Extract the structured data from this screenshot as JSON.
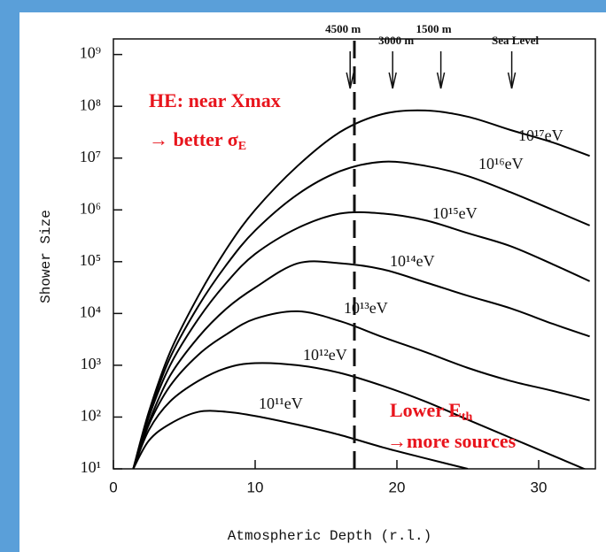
{
  "chart_data": {
    "type": "line",
    "y_label": "Shower Size",
    "x_label": "Atmospheric Depth (r.l.)",
    "y_log": true,
    "x": [
      1.4,
      2.5,
      4,
      6,
      8,
      10,
      13,
      16,
      19,
      22,
      25,
      28,
      31,
      33.6
    ],
    "xlim": [
      0,
      34
    ],
    "ylim": [
      10,
      2000000000
    ],
    "xticks": [
      0,
      10,
      20,
      30
    ],
    "yticks": [
      {
        "value": 10,
        "label": "10¹"
      },
      {
        "value": 100,
        "label": "10²"
      },
      {
        "value": 1000,
        "label": "10³"
      },
      {
        "value": 10000,
        "label": "10⁴"
      },
      {
        "value": 100000,
        "label": "10⁵"
      },
      {
        "value": 1000000,
        "label": "10⁶"
      },
      {
        "value": 10000000,
        "label": "10⁷"
      },
      {
        "value": 100000000,
        "label": "10⁸"
      },
      {
        "value": 1000000000,
        "label": "10⁹"
      }
    ],
    "series": [
      {
        "name": "10¹¹eV",
        "color": "#000000",
        "values": [
          10,
          35,
          74,
          126,
          126,
          105,
          71,
          45,
          26,
          16,
          10,
          null,
          null,
          null
        ]
      },
      {
        "name": "10¹²eV",
        "color": "#000000",
        "values": [
          10,
          56,
          200,
          500,
          890,
          1100,
          1000,
          710,
          400,
          200,
          89,
          40,
          18,
          9
        ]
      },
      {
        "name": "10¹³eV",
        "color": "#000000",
        "values": [
          10,
          71,
          400,
          1600,
          4000,
          7900,
          11000,
          7100,
          3500,
          1800,
          890,
          500,
          320,
          210
        ]
      },
      {
        "name": "10¹⁴eV",
        "color": "#000000",
        "values": [
          10,
          79,
          630,
          3500,
          12600,
          31600,
          93000,
          93000,
          71000,
          40000,
          22000,
          12600,
          6300,
          3600
        ]
      },
      {
        "name": "10¹⁵eV",
        "color": "#000000",
        "values": [
          10,
          100,
          1000,
          7900,
          40000,
          141000,
          447000,
          851000,
          851000,
          631000,
          355000,
          200000,
          89000,
          42000
        ]
      },
      {
        "name": "10¹⁶eV",
        "color": "#000000",
        "values": [
          10,
          112,
          1400,
          14000,
          89000,
          400000,
          2000000,
          5600000,
          8500000,
          7100000,
          4500000,
          2200000,
          1000000,
          500000
        ]
      },
      {
        "name": "10¹⁷eV",
        "color": "#000000",
        "values": [
          10,
          126,
          1800,
          22000,
          180000,
          1000000,
          7100000,
          32000000,
          71000000,
          83000000,
          63000000,
          35000000,
          20000000,
          11000000
        ]
      }
    ],
    "reference_line": {
      "x": 17
    },
    "altitude_markers": [
      {
        "label": "4500 m",
        "x": 16.7
      },
      {
        "label": "3000 m",
        "x": 19.7
      },
      {
        "label": "1500 m",
        "x": 23.1
      },
      {
        "label": "Sea Level",
        "x": 28.1
      }
    ],
    "annotations": [
      {
        "text": "HE: near Xmax"
      },
      {
        "text": "→ better σ",
        "sub": "E"
      },
      {
        "text": "Lower E",
        "sub": "th"
      },
      {
        "text": "→more sources"
      }
    ],
    "annotation_color": "#e8141c"
  }
}
